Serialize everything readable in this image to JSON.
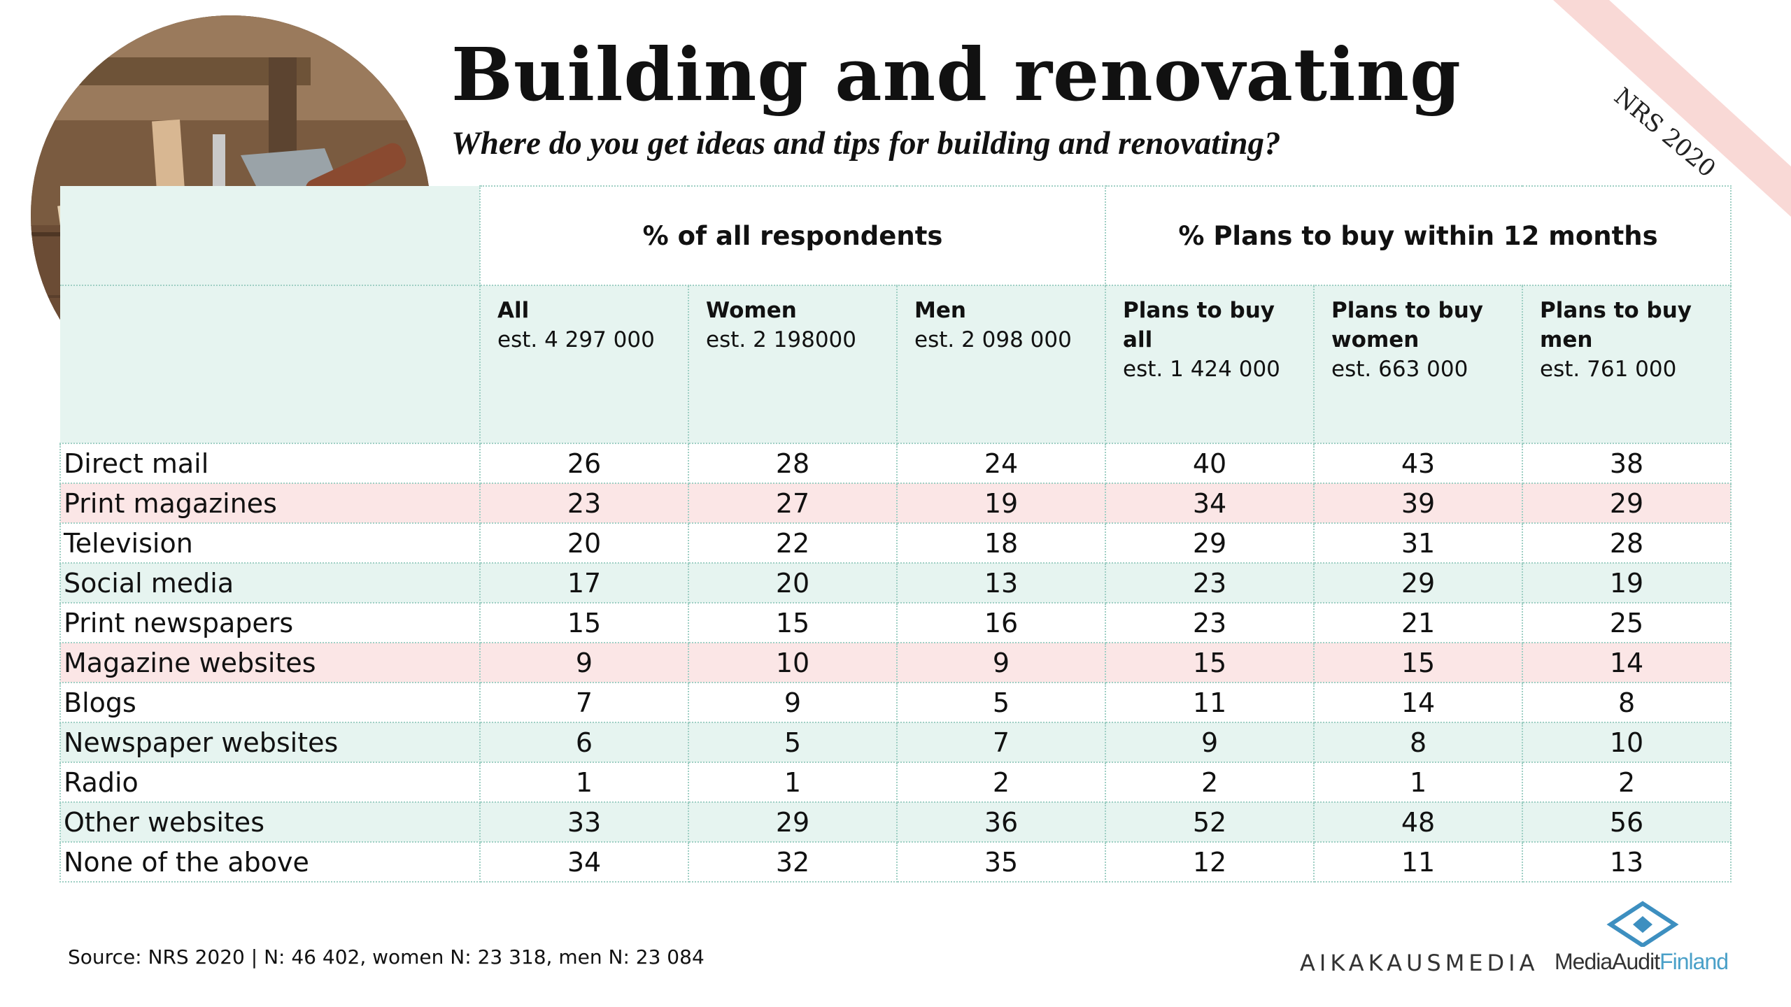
{
  "title": "Building and renovating",
  "subtitle": "Where do you get ideas and tips for building and renovating?",
  "badge": "NRS 2020",
  "colors": {
    "pink_row": "#fbe6e6",
    "green_row": "#e6f4f0",
    "border": "#9fcfc4",
    "ribbon": "#f9d9d6"
  },
  "chart_data": {
    "type": "table",
    "group_headers": [
      "% of all respondents",
      "% Plans to buy within 12 months"
    ],
    "columns": [
      {
        "label": "All",
        "est": "est. 4 297 000"
      },
      {
        "label": "Women",
        "est": "est. 2 198000"
      },
      {
        "label": "Men",
        "est": "est. 2 098 000"
      },
      {
        "label_lines": [
          "Plans to buy",
          "all"
        ],
        "est": "est. 1 424 000"
      },
      {
        "label_lines": [
          "Plans to buy",
          "women"
        ],
        "est": "est. 663 000"
      },
      {
        "label_lines": [
          "Plans to buy",
          "men"
        ],
        "est": "est. 761 000"
      }
    ],
    "rows": [
      {
        "label": "Direct mail",
        "shade": "white",
        "values": [
          "26",
          "28",
          "24",
          "40",
          "43",
          "38"
        ]
      },
      {
        "label": "Print magazines",
        "shade": "pink",
        "values": [
          "23",
          "27",
          "19",
          "34",
          "39",
          "29"
        ]
      },
      {
        "label": "Television",
        "shade": "white",
        "values": [
          "20",
          "22",
          "18",
          "29",
          "31",
          "28"
        ]
      },
      {
        "label": "Social media",
        "shade": "green",
        "values": [
          "17",
          "20",
          "13",
          "23",
          "29",
          "19"
        ]
      },
      {
        "label": "Print newspapers",
        "shade": "white",
        "values": [
          "15",
          "15",
          "16",
          "23",
          "21",
          "25"
        ]
      },
      {
        "label": "Magazine websites",
        "shade": "pink",
        "values": [
          "9",
          "10",
          "9",
          "15",
          "15",
          "14"
        ]
      },
      {
        "label": "Blogs",
        "shade": "white",
        "values": [
          "7",
          "9",
          "5",
          "11",
          "14",
          "8"
        ]
      },
      {
        "label": "Newspaper websites",
        "shade": "green",
        "values": [
          "6",
          "5",
          "7",
          "9",
          "8",
          "10"
        ]
      },
      {
        "label": "Radio",
        "shade": "white",
        "values": [
          "1",
          "1",
          "2",
          "2",
          "1",
          "2"
        ]
      },
      {
        "label": "Other websites",
        "shade": "green",
        "values": [
          "33",
          "29",
          "36",
          "52",
          "48",
          "56"
        ]
      },
      {
        "label": "None of the above",
        "shade": "white",
        "values": [
          "34",
          "32",
          "35",
          "12",
          "11",
          "13"
        ]
      }
    ]
  },
  "footer": {
    "source": "Source: NRS 2020 | N: 46 402, women N: 23 318, men N: 23 084",
    "logo_aikakausmedia": "AIKAKAUSMEDIA",
    "logo_maf_part1": "MediaAudit",
    "logo_maf_part2": "Finland"
  }
}
